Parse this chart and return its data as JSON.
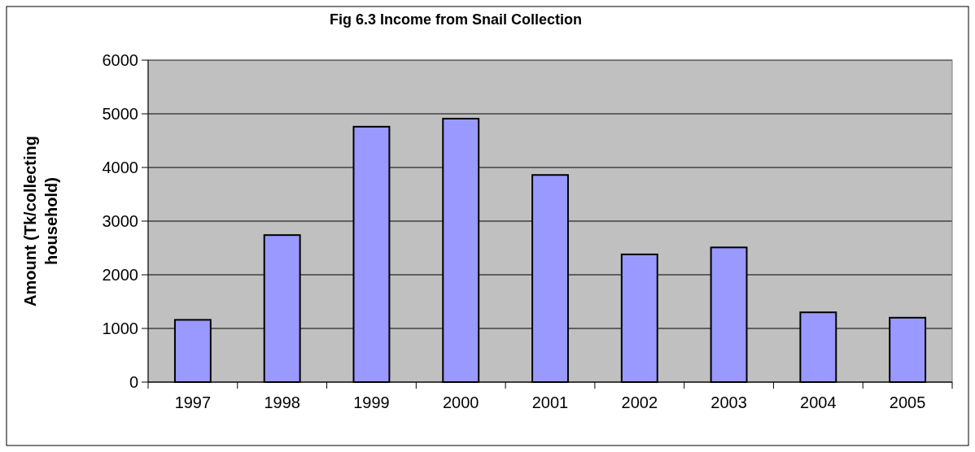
{
  "chart_data": {
    "type": "bar",
    "title": "Fig 6.3 Income from Snail Collection",
    "ylabel": "Amount (Tk/collecting household)",
    "categories": [
      "1997",
      "1998",
      "1999",
      "2000",
      "2001",
      "2002",
      "2003",
      "2004",
      "2005"
    ],
    "values": [
      1160,
      2740,
      4760,
      4910,
      3860,
      2380,
      2510,
      1300,
      1200
    ],
    "color": "#9999ff",
    "ylim": [
      0,
      6000
    ],
    "yticks": [
      0,
      1000,
      2000,
      3000,
      4000,
      5000,
      6000
    ],
    "grid": "y"
  }
}
